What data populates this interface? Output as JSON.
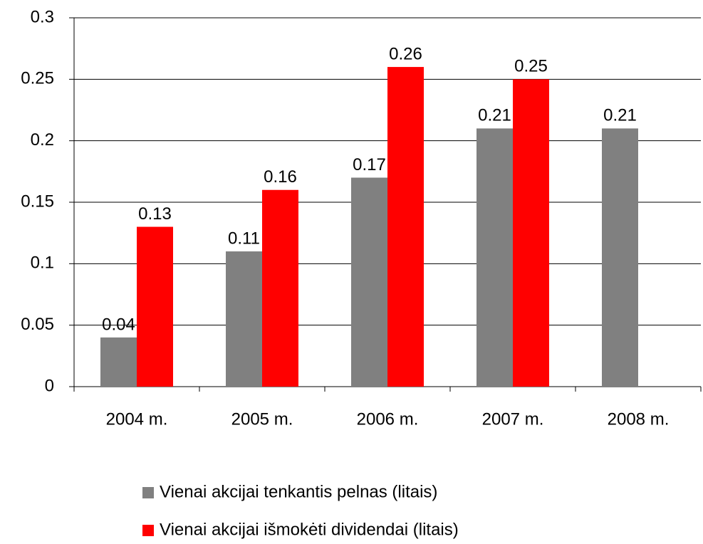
{
  "chart_data": {
    "type": "bar",
    "categories": [
      "2004 m.",
      "2005 m.",
      "2006 m.",
      "2007 m.",
      "2008 m."
    ],
    "series": [
      {
        "name": "Vienai akcijai tenkantis pelnas (litais)",
        "color": "#808080",
        "values": [
          0.04,
          0.11,
          0.17,
          0.21,
          0.21
        ]
      },
      {
        "name": "Vienai akcijai išmokėti dividendai (litais)",
        "color": "#ff0000",
        "values": [
          0.13,
          0.16,
          0.26,
          0.25,
          null
        ]
      }
    ],
    "ylim": [
      0,
      0.3
    ],
    "yticks": [
      0,
      0.05,
      0.1,
      0.15,
      0.2,
      0.25,
      0.3
    ],
    "grid": true,
    "legend": "bottom",
    "data_labels": true
  }
}
